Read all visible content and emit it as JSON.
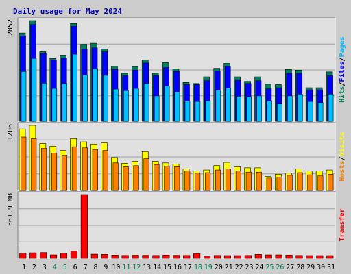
{
  "chart_data": {
    "type": "bar",
    "title": "Daily usage for May 2024",
    "colors": {
      "background": "#cccccc",
      "panel": "#e0e0e0",
      "title": "#0000aa",
      "hits": "#00805c",
      "files": "#0000ff",
      "pages": "#00c0ff",
      "visits": "#ffff00",
      "hosts": "#ff8000",
      "transfer": "#ff0000",
      "weekend": "#00805c",
      "weekday": "#000000"
    },
    "categories": [
      "1",
      "2",
      "3",
      "4",
      "5",
      "6",
      "7",
      "8",
      "9",
      "10",
      "11",
      "12",
      "13",
      "14",
      "15",
      "16",
      "17",
      "18",
      "19",
      "20",
      "21",
      "22",
      "23",
      "24",
      "25",
      "26",
      "27",
      "28",
      "29",
      "30",
      "31"
    ],
    "weekend_days": [
      "4",
      "5",
      "11",
      "12",
      "18",
      "19",
      "25",
      "26"
    ],
    "panels": [
      {
        "id": "hits",
        "ylabel_parts": [
          {
            "text": "Hits",
            "color": "#00805c"
          },
          {
            "text": "/",
            "color": "#000000"
          },
          {
            "text": "Files",
            "color": "#0000ff"
          },
          {
            "text": "/",
            "color": "#000000"
          },
          {
            "text": "Pages",
            "color": "#00c0ff"
          }
        ],
        "max_label": "2852",
        "ylim": [
          0,
          2852
        ],
        "series": [
          {
            "name": "Hits",
            "values": [
              2500,
              2852,
              1970,
              1780,
              1860,
              2770,
              2180,
              2210,
              2050,
              1560,
              1360,
              1550,
              1740,
              1360,
              1660,
              1480,
              1100,
              1070,
              1260,
              1500,
              1640,
              1260,
              1130,
              1260,
              1050,
              1040,
              1470,
              1450,
              950,
              950,
              1400
            ]
          },
          {
            "name": "Files",
            "values": [
              2420,
              2740,
              1920,
              1730,
              1790,
              2690,
              2040,
              2080,
              1970,
              1470,
              1290,
              1450,
              1650,
              1290,
              1520,
              1410,
              1040,
              1040,
              1150,
              1420,
              1560,
              1160,
              1070,
              1150,
              920,
              950,
              1360,
              1360,
              890,
              890,
              1290
            ]
          },
          {
            "name": "Pages",
            "values": [
              1410,
              1780,
              1080,
              930,
              1070,
              1900,
              1310,
              1490,
              1300,
              910,
              870,
              930,
              1070,
              720,
              1000,
              830,
              570,
              560,
              580,
              880,
              940,
              710,
              700,
              720,
              580,
              490,
              720,
              770,
              560,
              530,
              770
            ]
          }
        ]
      },
      {
        "id": "visits",
        "ylabel_parts": [
          {
            "text": "Hosts",
            "color": "#ff8000"
          },
          {
            "text": "/",
            "color": "#000000"
          },
          {
            "text": "Visits",
            "color": "#ffff00"
          }
        ],
        "max_label": "1206",
        "ylim": [
          0,
          1206
        ],
        "series": [
          {
            "name": "Visits",
            "values": [
              1140,
              1206,
              870,
              820,
              740,
              960,
              900,
              860,
              880,
              610,
              500,
              540,
              720,
              540,
              510,
              490,
              400,
              360,
              380,
              460,
              520,
              440,
              420,
              420,
              260,
              300,
              320,
              400,
              360,
              360,
              380
            ]
          },
          {
            "name": "Hosts",
            "values": [
              990,
              960,
              780,
              690,
              640,
              810,
              790,
              760,
              740,
              510,
              440,
              460,
              590,
              480,
              450,
              440,
              360,
              320,
              330,
              380,
              400,
              360,
              340,
              340,
              230,
              250,
              280,
              330,
              290,
              270,
              300
            ]
          }
        ]
      },
      {
        "id": "transfer",
        "ylabel_parts": [
          {
            "text": "Transfer",
            "color": "#ff0000"
          }
        ],
        "max_label": "561.9 MB",
        "ylim": [
          0,
          561.9
        ],
        "series": [
          {
            "name": "Transfer",
            "values": [
              44,
              48,
              50,
              30,
              44,
              64,
              561.9,
              36,
              34,
              28,
              25,
              27,
              26,
              25,
              28,
              26,
              25,
              42,
              20,
              25,
              24,
              24,
              25,
              34,
              30,
              30,
              28,
              25,
              24,
              24,
              24
            ]
          }
        ]
      }
    ]
  }
}
